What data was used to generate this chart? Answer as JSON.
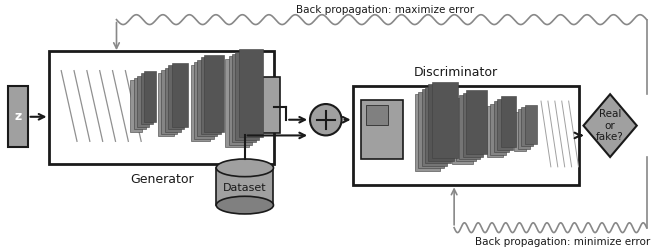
{
  "background_color": "#ffffff",
  "fig_width": 6.72,
  "fig_height": 2.48,
  "dpi": 100,
  "colors": {
    "light_gray": "#a0a0a0",
    "mid_gray": "#808080",
    "dark_gray": "#606060",
    "box_edge": "#1a1a1a",
    "arrow": "#1a1a1a",
    "wavy_line": "#888888",
    "text": "#1a1a1a",
    "white": "#ffffff"
  },
  "labels": {
    "z": "z",
    "generator": "Generator",
    "dataset": "Dataset",
    "discriminator": "Discriminator",
    "real_or_fake": "Real\nor\nfake?",
    "back_prop_max": "Back propagation: maximize error",
    "back_prop_min": "Back propagation: minimize error"
  }
}
